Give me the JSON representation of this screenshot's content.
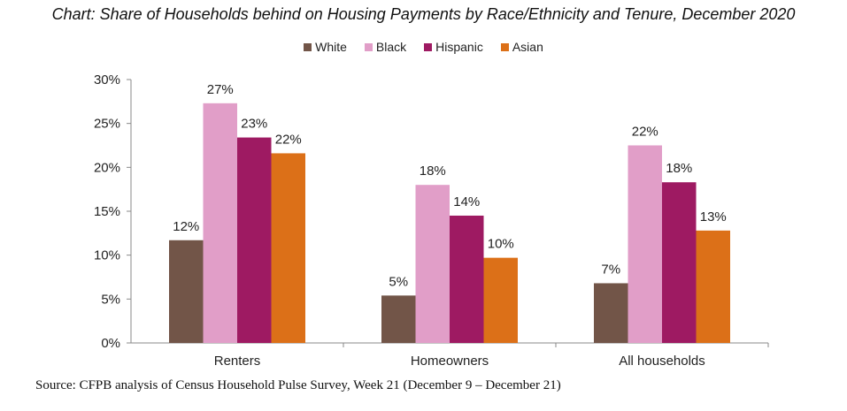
{
  "title": "Chart: Share of Households behind on Housing Payments by Race/Ethnicity and Tenure, December 2020",
  "source": "Source: CFPB analysis of Census Household Pulse Survey, Week 21 (December 9 – December 21)",
  "chart_data": {
    "type": "bar",
    "title": "Chart: Share of Households behind on Housing Payments by Race/Ethnicity and Tenure, December 2020",
    "xlabel": "",
    "ylabel": "",
    "categories": [
      "Renters",
      "Homeowners",
      "All households"
    ],
    "ylim": [
      0,
      30
    ],
    "yticks": [
      "0%",
      "5%",
      "10%",
      "15%",
      "20%",
      "25%",
      "30%"
    ],
    "grid": false,
    "legend_position": "top-center",
    "series": [
      {
        "name": "White",
        "color": "#725548",
        "values": [
          11.7,
          5.4,
          6.8
        ],
        "labels": [
          "12%",
          "5%",
          "7%"
        ]
      },
      {
        "name": "Black",
        "color": "#e19ec8",
        "values": [
          27.3,
          18.0,
          22.5
        ],
        "labels": [
          "27%",
          "18%",
          "22%"
        ]
      },
      {
        "name": "Hispanic",
        "color": "#9e1a62",
        "values": [
          23.4,
          14.5,
          18.3
        ],
        "labels": [
          "23%",
          "14%",
          "18%"
        ]
      },
      {
        "name": "Asian",
        "color": "#dc7018",
        "values": [
          21.6,
          9.7,
          12.8
        ],
        "labels": [
          "22%",
          "10%",
          "13%"
        ]
      }
    ]
  }
}
